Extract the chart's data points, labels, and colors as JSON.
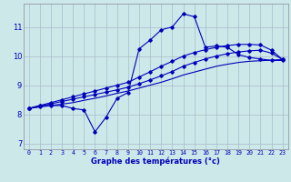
{
  "xlabel": "Graphe des températures (°c)",
  "background_color": "#cce8e8",
  "grid_color": "#aabbcc",
  "line_color": "#0000bb",
  "xlim": [
    -0.5,
    23.5
  ],
  "ylim": [
    6.8,
    11.8
  ],
  "xticks": [
    0,
    1,
    2,
    3,
    4,
    5,
    6,
    7,
    8,
    9,
    10,
    11,
    12,
    13,
    14,
    15,
    16,
    17,
    18,
    19,
    20,
    21,
    22,
    23
  ],
  "yticks": [
    7,
    8,
    9,
    10,
    11
  ],
  "hours": [
    0,
    1,
    2,
    3,
    4,
    5,
    6,
    7,
    8,
    9,
    10,
    11,
    12,
    13,
    14,
    15,
    16,
    17,
    18,
    19,
    20,
    21,
    22,
    23
  ],
  "temp_actual": [
    8.2,
    8.3,
    8.3,
    8.3,
    8.2,
    8.15,
    7.4,
    7.9,
    8.55,
    8.75,
    10.25,
    10.55,
    10.9,
    11.0,
    11.45,
    11.35,
    10.3,
    10.35,
    10.3,
    10.05,
    9.95,
    9.9,
    9.85,
    9.85
  ],
  "temp_line1": [
    8.2,
    8.25,
    8.3,
    8.35,
    8.4,
    8.48,
    8.55,
    8.63,
    8.72,
    8.8,
    8.9,
    9.0,
    9.1,
    9.22,
    9.35,
    9.45,
    9.55,
    9.65,
    9.72,
    9.78,
    9.82,
    9.84,
    9.86,
    9.88
  ],
  "temp_line2": [
    8.2,
    8.28,
    8.36,
    8.44,
    8.52,
    8.6,
    8.68,
    8.76,
    8.84,
    8.93,
    9.05,
    9.18,
    9.32,
    9.47,
    9.65,
    9.78,
    9.9,
    10.0,
    10.08,
    10.14,
    10.18,
    10.2,
    10.1,
    9.88
  ],
  "temp_line3": [
    8.2,
    8.3,
    8.4,
    8.5,
    8.6,
    8.7,
    8.8,
    8.9,
    9.0,
    9.1,
    9.28,
    9.46,
    9.65,
    9.82,
    10.0,
    10.12,
    10.22,
    10.3,
    10.36,
    10.4,
    10.4,
    10.38,
    10.2,
    9.88
  ]
}
